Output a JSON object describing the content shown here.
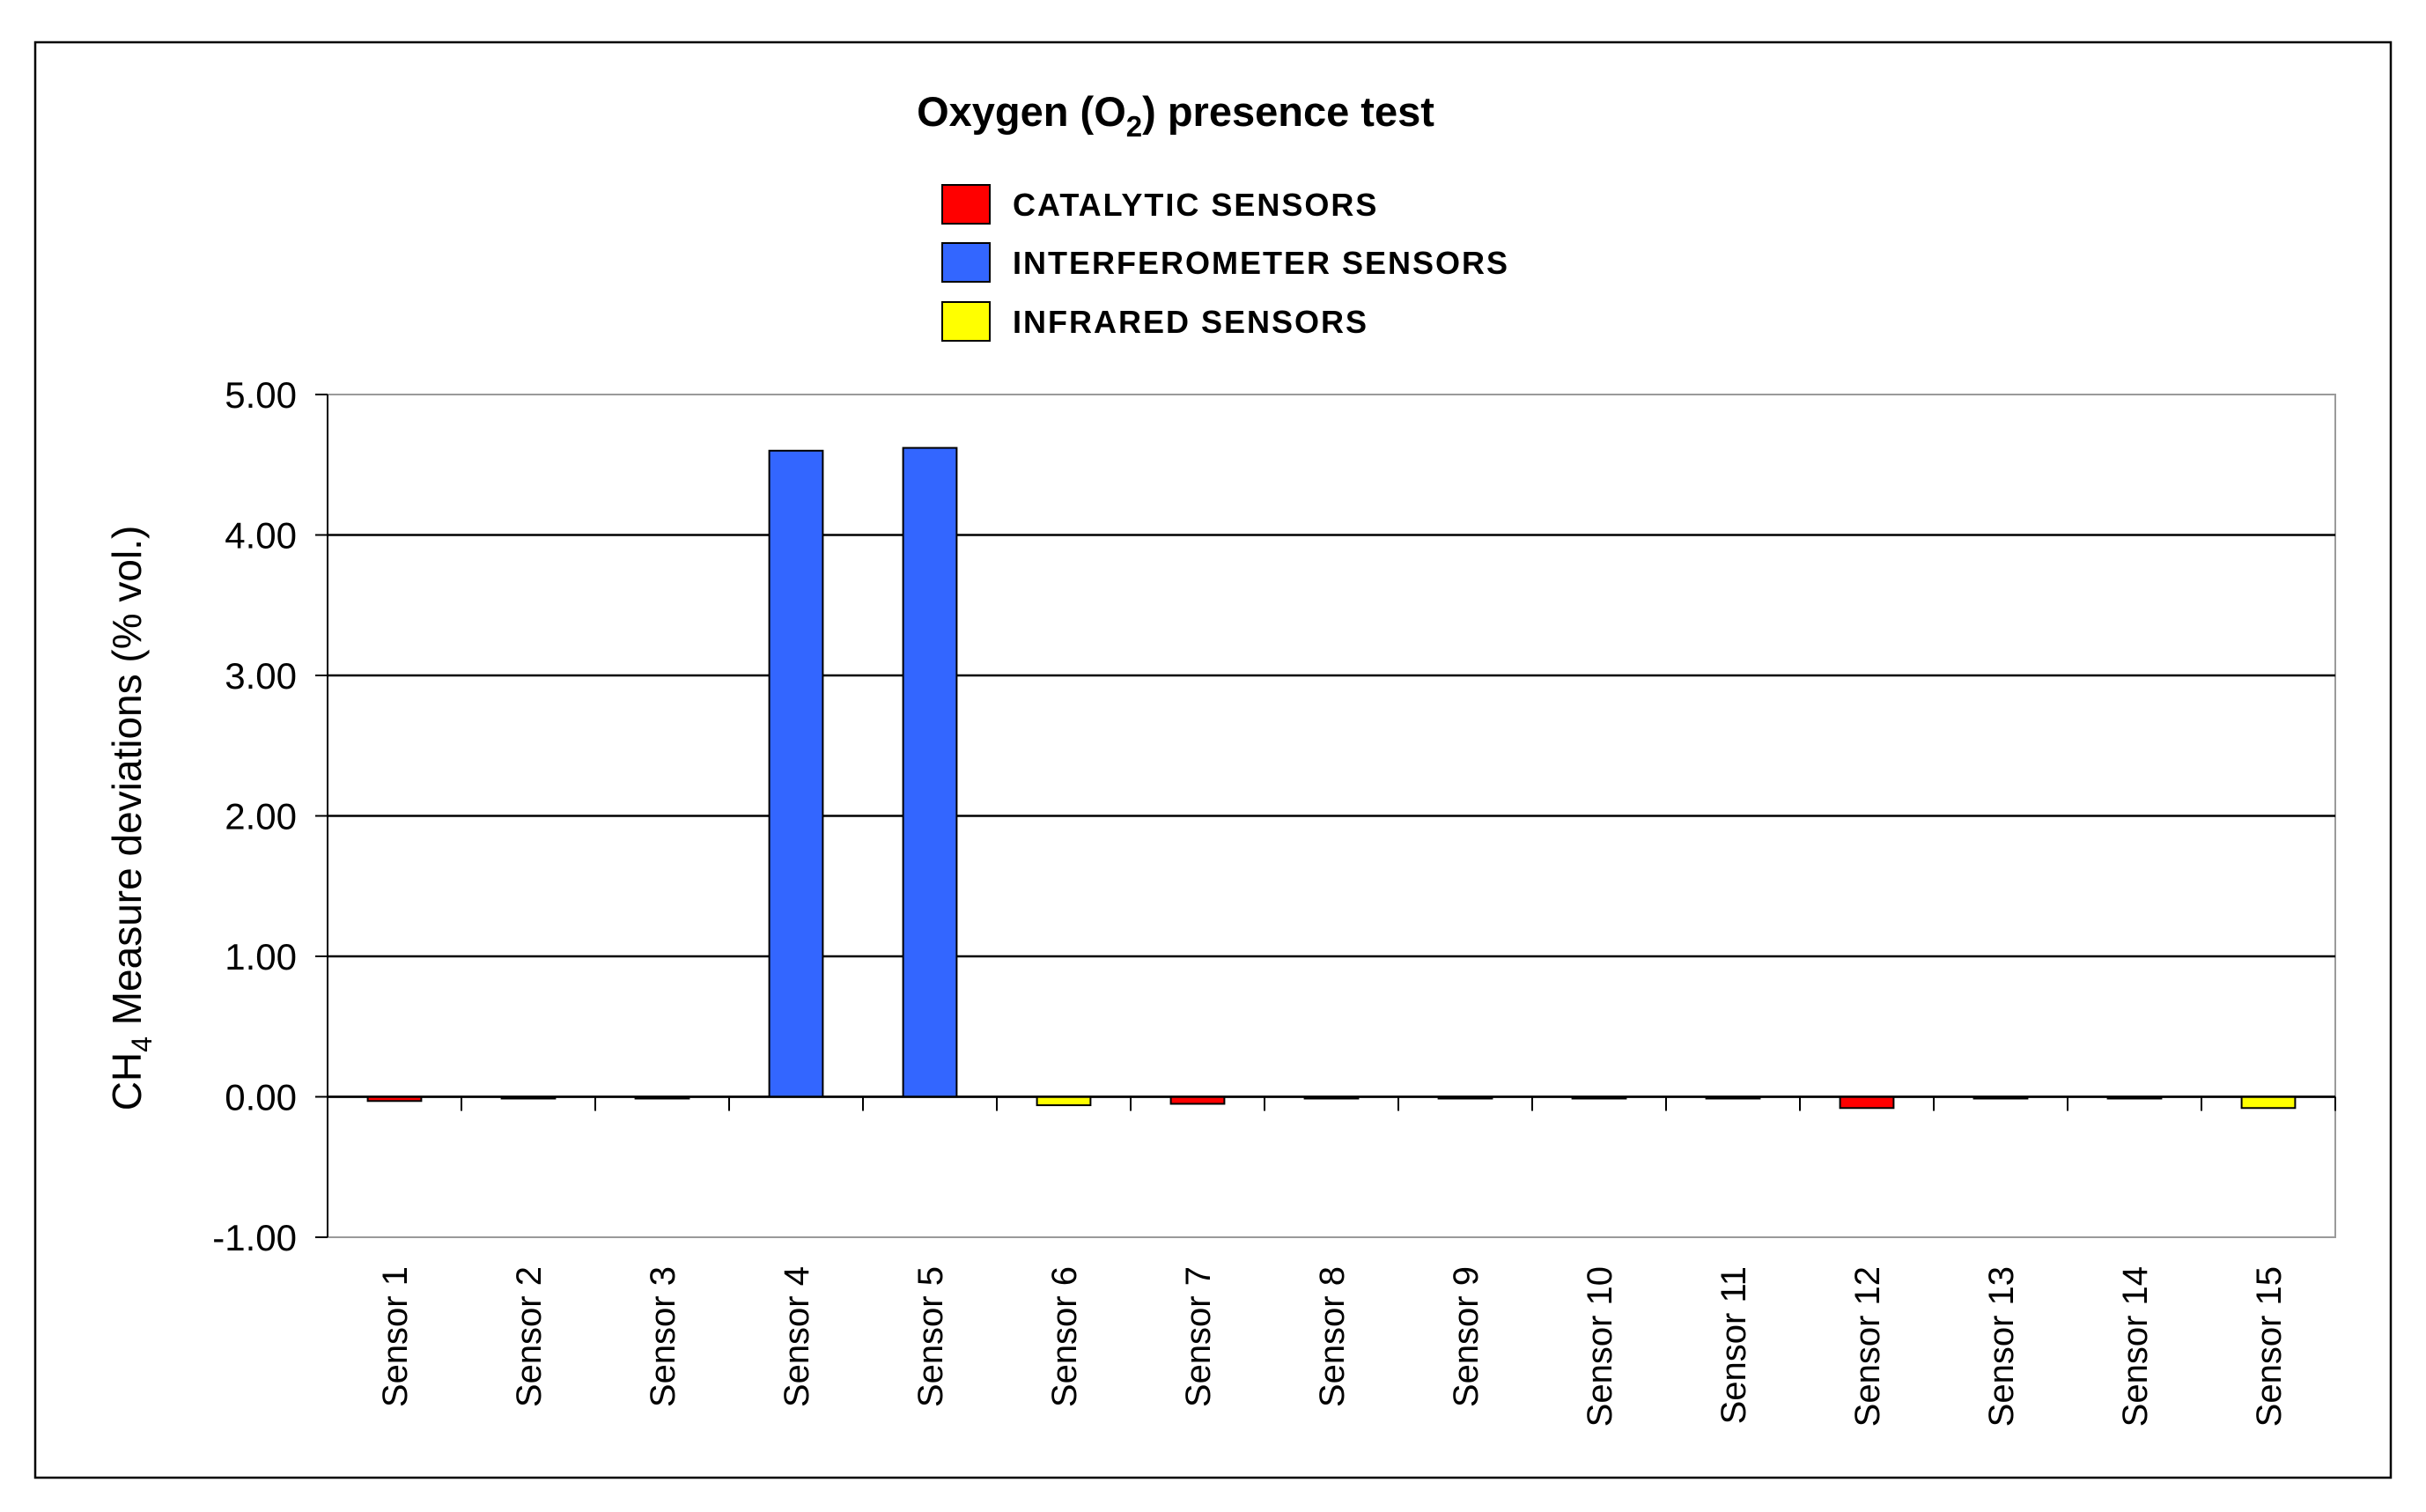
{
  "chart_data": {
    "type": "bar",
    "title": {
      "prefix": "Oxygen (O",
      "subscript": "2",
      "suffix": ") presence test"
    },
    "ylabel": {
      "prefix": "CH",
      "subscript": "4",
      "suffix": " Measure deviations (% vol.)"
    },
    "xlabel": "",
    "ylim": [
      -1,
      5
    ],
    "yticks": [
      -1,
      0,
      1,
      2,
      3,
      4,
      5
    ],
    "ytick_labels": [
      "-1.00",
      "0.00",
      "1.00",
      "2.00",
      "3.00",
      "4.00",
      "5.00"
    ],
    "grid": true,
    "legend_position": "top-center",
    "legend": [
      {
        "label": "CATALYTIC  SENSORS",
        "color": "#ff0000",
        "type": "catalytic"
      },
      {
        "label": "INTERFEROMETER  SENSORS",
        "color": "#3366ff",
        "type": "interferometer"
      },
      {
        "label": "INFRARED  SENSORS",
        "color": "#ffff00",
        "type": "infrared"
      }
    ],
    "categories": [
      "Sensor 1",
      "Sensor 2",
      "Sensor 3",
      "Sensor 4",
      "Sensor 5",
      "Sensor 6",
      "Sensor 7",
      "Sensor 8",
      "Sensor 9",
      "Sensor 10",
      "Sensor 11",
      "Sensor 12",
      "Sensor 13",
      "Sensor 14",
      "Sensor 15"
    ],
    "values": [
      -0.03,
      -0.01,
      -0.01,
      4.6,
      4.62,
      -0.06,
      -0.05,
      -0.01,
      -0.01,
      -0.01,
      -0.01,
      -0.08,
      0.0,
      0.0,
      -0.08
    ],
    "bar_types": [
      "catalytic",
      "catalytic",
      "catalytic",
      "interferometer",
      "interferometer",
      "infrared",
      "catalytic",
      "catalytic",
      "catalytic",
      "catalytic",
      "catalytic",
      "catalytic",
      "catalytic",
      "catalytic",
      "infrared"
    ]
  }
}
